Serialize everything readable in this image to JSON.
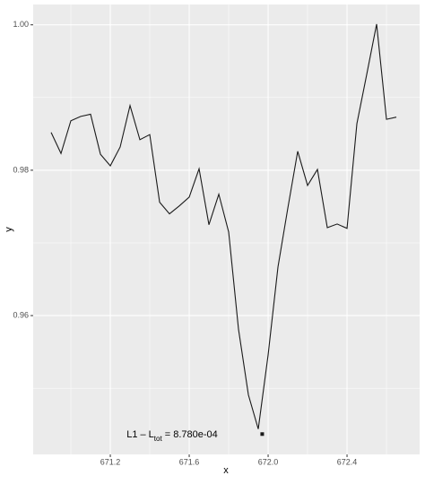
{
  "chart_data": {
    "type": "line",
    "x_label": "x",
    "y_label": "y",
    "x": [
      670.9,
      670.95,
      671.0,
      671.05,
      671.1,
      671.15,
      671.2,
      671.25,
      671.3,
      671.35,
      671.4,
      671.45,
      671.5,
      671.55,
      671.6,
      671.65,
      671.7,
      671.75,
      671.8,
      671.85,
      671.9,
      671.95,
      672.0,
      672.05,
      672.1,
      672.15,
      672.2,
      672.25,
      672.3,
      672.35,
      672.4,
      672.45,
      672.5,
      672.55,
      672.6,
      672.65
    ],
    "series": [
      {
        "color": "#1a1a1a",
        "values": [
          0.9852,
          0.9823,
          0.9868,
          0.9874,
          0.9877,
          0.9822,
          0.9806,
          0.9832,
          0.9889,
          0.9842,
          0.9849,
          0.9756,
          0.974,
          0.9751,
          0.9763,
          0.9802,
          0.9725,
          0.9767,
          0.9715,
          0.9581,
          0.9491,
          0.9444,
          0.9546,
          0.9667,
          0.9748,
          0.9826,
          0.9779,
          0.9801,
          0.9721,
          0.9726,
          0.972,
          0.9864,
          0.9932,
          1.0001,
          0.987,
          0.9873
        ]
      }
    ],
    "marker": {
      "x": 671.97,
      "y": 0.9437,
      "color": "#1a1a1a"
    },
    "annotation": [
      "L1 – L",
      "tot",
      " = 8.780e-04"
    ],
    "xlim": [
      670.809,
      672.768
    ],
    "ylim": [
      0.9409,
      1.0028
    ],
    "xticks": [
      671.2,
      671.6,
      {
        "value": 672,
        "label": "672.0"
      },
      672.4
    ],
    "yticks": [
      {
        "value": 0.96,
        "label": "0.96"
      },
      {
        "value": 0.98,
        "label": "0.98"
      },
      {
        "value": 1,
        "label": "1.00"
      }
    ],
    "x_minor_ticks": [
      671.0,
      671.4,
      671.8,
      672.2,
      672.6
    ],
    "y_minor_ticks": [
      0.95,
      0.97,
      0.99
    ],
    "grid": true,
    "background": "#ebebeb"
  }
}
